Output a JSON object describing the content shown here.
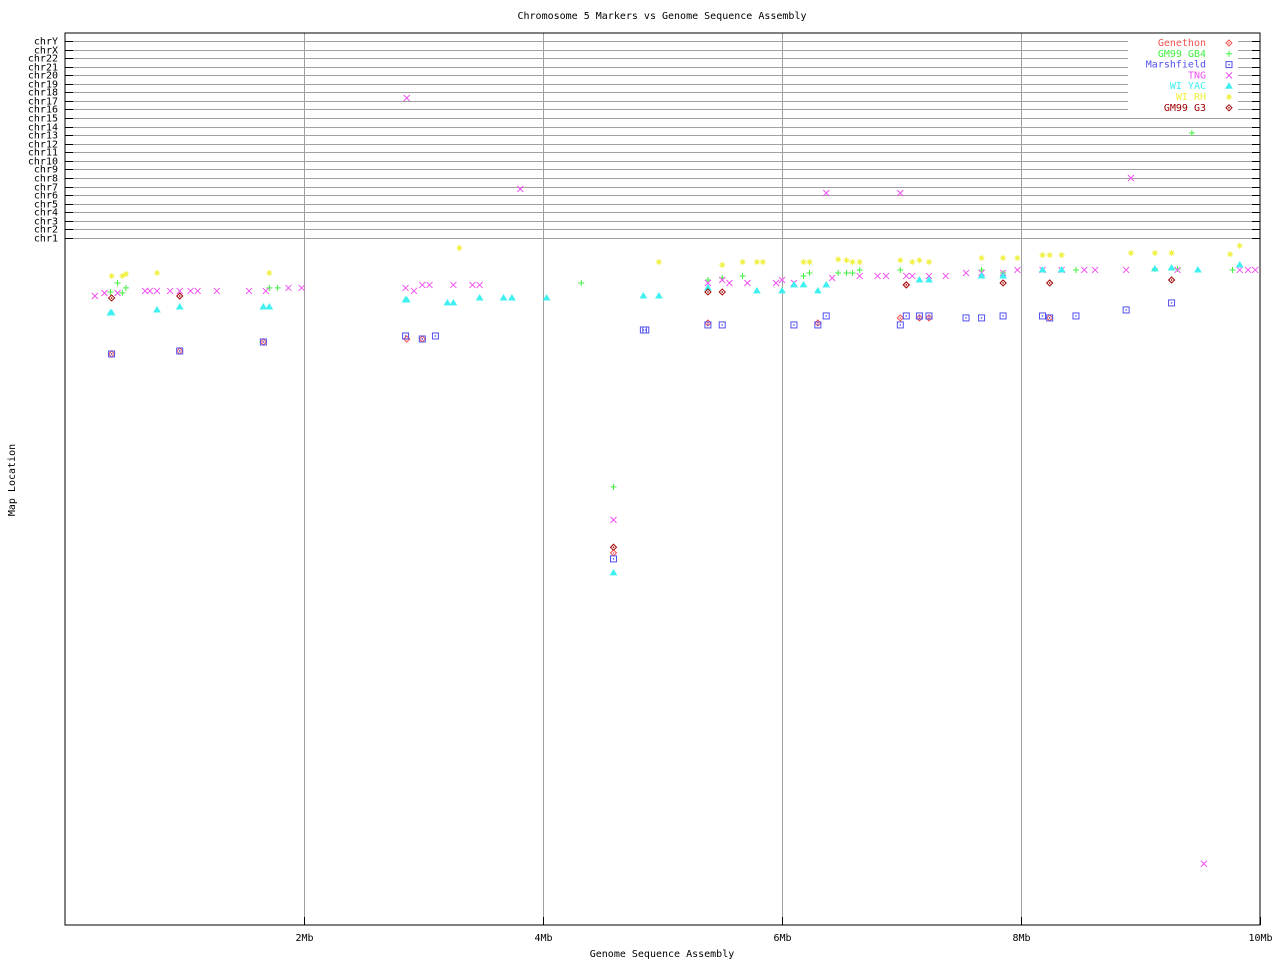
{
  "chart_data": {
    "type": "scatter",
    "title": "Chromosome 5 Markers vs Genome Sequence Assembly",
    "xlabel": "Genome Sequence Assembly",
    "ylabel": "Map Location",
    "xlim": [
      0,
      10
    ],
    "ylim": [
      -79.2,
      24.93
    ],
    "x_ticks": [
      {
        "v": 2,
        "label": "2Mb"
      },
      {
        "v": 4,
        "label": "4Mb"
      },
      {
        "v": 6,
        "label": "6Mb"
      },
      {
        "v": 8,
        "label": "8Mb"
      },
      {
        "v": 10,
        "label": "10Mb"
      }
    ],
    "y_ticks": [
      {
        "v": 1,
        "label": "chr1"
      },
      {
        "v": 2,
        "label": "chr2"
      },
      {
        "v": 3,
        "label": "chr3"
      },
      {
        "v": 4,
        "label": "chr4"
      },
      {
        "v": 5,
        "label": "chr5"
      },
      {
        "v": 6,
        "label": "chr6"
      },
      {
        "v": 7,
        "label": "chr7"
      },
      {
        "v": 8,
        "label": "chr8"
      },
      {
        "v": 9,
        "label": "chr9"
      },
      {
        "v": 10,
        "label": "chr10"
      },
      {
        "v": 11,
        "label": "chr11"
      },
      {
        "v": 12,
        "label": "chr12"
      },
      {
        "v": 13,
        "label": "chr13"
      },
      {
        "v": 14,
        "label": "chr14"
      },
      {
        "v": 15,
        "label": "chr15"
      },
      {
        "v": 16,
        "label": "chr16"
      },
      {
        "v": 17,
        "label": "chr17"
      },
      {
        "v": 18,
        "label": "chr18"
      },
      {
        "v": 19,
        "label": "chr19"
      },
      {
        "v": 20,
        "label": "chr20"
      },
      {
        "v": 21,
        "label": "chr21"
      },
      {
        "v": 22,
        "label": "chr22"
      },
      {
        "v": 23,
        "label": "chrX"
      },
      {
        "v": 24,
        "label": "chrY"
      }
    ],
    "grid": true,
    "legend_position": "top-right",
    "series": [
      {
        "name": "Genethon",
        "color": "#f05050",
        "marker": "diamond",
        "points": [
          [
            0.39,
            -12.54
          ],
          [
            0.96,
            -12.19
          ],
          [
            1.66,
            -11.14
          ],
          [
            2.86,
            -10.79
          ],
          [
            2.99,
            -10.79
          ],
          [
            5.38,
            -8.92
          ],
          [
            6.3,
            -8.92
          ],
          [
            4.59,
            -35.76
          ],
          [
            7.04,
            -4.48
          ],
          [
            6.99,
            -8.33
          ],
          [
            7.15,
            -8.33
          ],
          [
            7.23,
            -8.33
          ],
          [
            8.24,
            -8.33
          ]
        ]
      },
      {
        "name": "GM99 GB4",
        "color": "#40f040",
        "marker": "plus",
        "points": [
          [
            0.44,
            -4.25
          ],
          [
            0.38,
            -5.3
          ],
          [
            0.48,
            -5.4
          ],
          [
            0.51,
            -4.83
          ],
          [
            1.71,
            -4.83
          ],
          [
            1.78,
            -4.83
          ],
          [
            4.32,
            -4.25
          ],
          [
            4.59,
            -28.06
          ],
          [
            5.38,
            -3.9
          ],
          [
            5.5,
            -3.67
          ],
          [
            5.67,
            -3.43
          ],
          [
            6.23,
            -3.08
          ],
          [
            6.18,
            -3.43
          ],
          [
            6.47,
            -3.08
          ],
          [
            6.54,
            -3.08
          ],
          [
            6.59,
            -3.08
          ],
          [
            6.65,
            -2.73
          ],
          [
            6.99,
            -2.73
          ],
          [
            7.67,
            -2.73
          ],
          [
            7.85,
            -3.08
          ],
          [
            8.46,
            -2.73
          ],
          [
            9.12,
            -2.61
          ],
          [
            9.31,
            -2.61
          ],
          [
            9.43,
            13.25
          ],
          [
            9.77,
            -2.73
          ],
          [
            9.6,
            19.2
          ]
        ]
      },
      {
        "name": "Marshfield",
        "color": "#5050f0",
        "marker": "square",
        "points": [
          [
            0.39,
            -12.54
          ],
          [
            0.96,
            -12.19
          ],
          [
            1.66,
            -11.14
          ],
          [
            2.85,
            -10.44
          ],
          [
            2.99,
            -10.79
          ],
          [
            3.1,
            -10.44
          ],
          [
            4.84,
            -9.74
          ],
          [
            4.86,
            -9.74
          ],
          [
            5.38,
            -9.15
          ],
          [
            5.5,
            -9.15
          ],
          [
            6.1,
            -9.15
          ],
          [
            6.3,
            -9.15
          ],
          [
            6.37,
            -8.1
          ],
          [
            6.99,
            -9.15
          ],
          [
            7.04,
            -8.1
          ],
          [
            7.15,
            -8.1
          ],
          [
            7.23,
            -8.1
          ],
          [
            7.54,
            -8.33
          ],
          [
            7.67,
            -8.33
          ],
          [
            7.85,
            -8.1
          ],
          [
            8.18,
            -8.1
          ],
          [
            8.24,
            -8.33
          ],
          [
            8.46,
            -8.1
          ],
          [
            8.88,
            -7.4
          ],
          [
            9.26,
            -6.58
          ],
          [
            4.59,
            -36.46
          ]
        ]
      },
      {
        "name": "TNG",
        "color": "#f050f0",
        "marker": "cross",
        "points": [
          [
            0.25,
            -5.77
          ],
          [
            0.33,
            -5.42
          ],
          [
            0.44,
            -5.42
          ],
          [
            0.67,
            -5.18
          ],
          [
            0.71,
            -5.18
          ],
          [
            0.77,
            -5.18
          ],
          [
            0.88,
            -5.18
          ],
          [
            0.96,
            -5.18
          ],
          [
            1.05,
            -5.18
          ],
          [
            1.11,
            -5.18
          ],
          [
            1.27,
            -5.18
          ],
          [
            1.54,
            -5.18
          ],
          [
            1.68,
            -5.18
          ],
          [
            1.87,
            -4.83
          ],
          [
            1.98,
            -4.83
          ],
          [
            2.85,
            -4.83
          ],
          [
            2.92,
            -5.18
          ],
          [
            2.99,
            -4.48
          ],
          [
            3.05,
            -4.48
          ],
          [
            3.25,
            -4.48
          ],
          [
            3.41,
            -4.48
          ],
          [
            3.47,
            -4.48
          ],
          [
            2.86,
            17.34
          ],
          [
            3.81,
            6.72
          ],
          [
            4.59,
            -31.91
          ],
          [
            5.38,
            -4.25
          ],
          [
            5.5,
            -3.9
          ],
          [
            5.56,
            -4.25
          ],
          [
            5.71,
            -4.25
          ],
          [
            5.95,
            -4.25
          ],
          [
            6.0,
            -3.9
          ],
          [
            6.1,
            -4.25
          ],
          [
            6.37,
            6.25
          ],
          [
            6.42,
            -3.67
          ],
          [
            6.65,
            -3.43
          ],
          [
            6.8,
            -3.43
          ],
          [
            6.87,
            -3.43
          ],
          [
            6.99,
            6.25
          ],
          [
            7.04,
            -3.43
          ],
          [
            7.09,
            -3.43
          ],
          [
            7.23,
            -3.43
          ],
          [
            7.37,
            -3.43
          ],
          [
            7.54,
            -3.08
          ],
          [
            7.67,
            -3.08
          ],
          [
            7.85,
            -3.08
          ],
          [
            7.97,
            -2.73
          ],
          [
            8.18,
            -2.73
          ],
          [
            8.34,
            -2.73
          ],
          [
            8.53,
            -2.73
          ],
          [
            8.62,
            -2.73
          ],
          [
            8.88,
            -2.73
          ],
          [
            8.92,
            8.0
          ],
          [
            9.31,
            -2.73
          ],
          [
            9.53,
            -72.05
          ],
          [
            9.83,
            -2.73
          ],
          [
            9.9,
            -2.73
          ],
          [
            9.96,
            -2.73
          ]
        ]
      },
      {
        "name": "WI YAC",
        "color": "#40f0f0",
        "marker": "triangle",
        "points": [
          [
            0.38,
            -7.75
          ],
          [
            0.39,
            -7.75
          ],
          [
            0.77,
            -7.4
          ],
          [
            0.96,
            -7.05
          ],
          [
            1.66,
            -7.05
          ],
          [
            1.71,
            -7.05
          ],
          [
            2.85,
            -6.23
          ],
          [
            2.86,
            -6.23
          ],
          [
            3.2,
            -6.58
          ],
          [
            3.25,
            -6.58
          ],
          [
            3.47,
            -6.0
          ],
          [
            3.67,
            -6.0
          ],
          [
            3.74,
            -6.0
          ],
          [
            4.03,
            -6.0
          ],
          [
            4.84,
            -5.77
          ],
          [
            4.97,
            -5.77
          ],
          [
            5.38,
            -4.83
          ],
          [
            5.79,
            -5.18
          ],
          [
            6.0,
            -5.18
          ],
          [
            6.1,
            -4.48
          ],
          [
            6.18,
            -4.48
          ],
          [
            6.3,
            -5.18
          ],
          [
            6.37,
            -4.48
          ],
          [
            7.15,
            -3.9
          ],
          [
            7.23,
            -3.9
          ],
          [
            7.85,
            -3.43
          ],
          [
            7.67,
            -3.43
          ],
          [
            8.18,
            -2.73
          ],
          [
            8.34,
            -2.73
          ],
          [
            9.12,
            -2.61
          ],
          [
            9.26,
            -2.5
          ],
          [
            9.48,
            -2.73
          ],
          [
            9.83,
            -2.15
          ],
          [
            4.59,
            -38.09
          ]
        ]
      },
      {
        "name": "WI RH",
        "color": "#f0f040",
        "marker": "star",
        "points": [
          [
            0.39,
            -3.43
          ],
          [
            0.48,
            -3.43
          ],
          [
            0.51,
            -3.2
          ],
          [
            0.77,
            -3.08
          ],
          [
            1.71,
            -3.08
          ],
          [
            3.3,
            -0.17
          ],
          [
            4.97,
            -1.8
          ],
          [
            5.5,
            -2.15
          ],
          [
            5.67,
            -1.8
          ],
          [
            5.79,
            -1.8
          ],
          [
            5.84,
            -1.8
          ],
          [
            6.18,
            -1.8
          ],
          [
            6.23,
            -1.8
          ],
          [
            6.47,
            -1.5
          ],
          [
            6.54,
            -1.6
          ],
          [
            6.59,
            -1.8
          ],
          [
            6.65,
            -1.8
          ],
          [
            6.99,
            -1.6
          ],
          [
            7.09,
            -1.8
          ],
          [
            7.15,
            -1.6
          ],
          [
            7.23,
            -1.8
          ],
          [
            7.67,
            -1.33
          ],
          [
            7.85,
            -1.33
          ],
          [
            7.97,
            -1.33
          ],
          [
            8.18,
            -1.0
          ],
          [
            8.24,
            -1.0
          ],
          [
            8.34,
            -1.0
          ],
          [
            8.92,
            -0.75
          ],
          [
            9.12,
            -0.75
          ],
          [
            9.26,
            -0.75
          ],
          [
            9.75,
            -0.9
          ],
          [
            9.83,
            0.1
          ]
        ]
      },
      {
        "name": "GM99 G3",
        "color": "#a00000",
        "marker": "diamond",
        "points": [
          [
            0.39,
            -6.0
          ],
          [
            0.96,
            -5.77
          ],
          [
            5.38,
            -5.3
          ],
          [
            5.5,
            -5.3
          ],
          [
            4.59,
            -35.1
          ],
          [
            7.04,
            -4.48
          ],
          [
            7.85,
            -4.25
          ],
          [
            8.24,
            -4.25
          ],
          [
            9.26,
            -3.9
          ]
        ]
      }
    ]
  }
}
